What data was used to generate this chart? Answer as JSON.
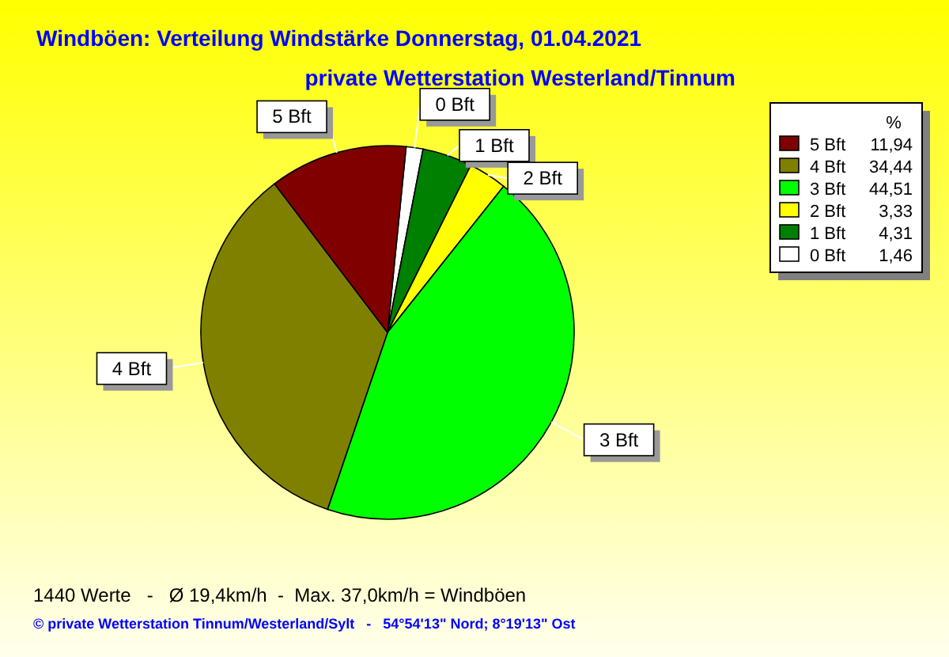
{
  "chart_data": {
    "type": "pie",
    "title": "Windböen: Verteilung Windstärke  Donnerstag, 01.04.2021",
    "subtitle": "private Wetterstation Westerland/Tinnum",
    "categories": [
      "0 Bft",
      "1 Bft",
      "2 Bft",
      "3 Bft",
      "4 Bft",
      "5 Bft"
    ],
    "values": [
      1.46,
      4.31,
      3.33,
      44.51,
      34.44,
      11.94
    ],
    "value_labels": [
      "1,46",
      "4,31",
      "3,33",
      "44,51",
      "34,44",
      "11,94"
    ],
    "colors": [
      "#ffffff",
      "#008000",
      "#ffff00",
      "#00ff00",
      "#808000",
      "#800000"
    ],
    "legend": "top right",
    "legend_title": "%",
    "annotations": [
      "1440 Werte   -   Ø 19,4km/h  -  Max. 37,0km/h = Windböen",
      "© private Wetterstation Tinnum/Westerland/Sylt   -   54°54'13\" Nord; 8°19'13\" Ost"
    ]
  }
}
